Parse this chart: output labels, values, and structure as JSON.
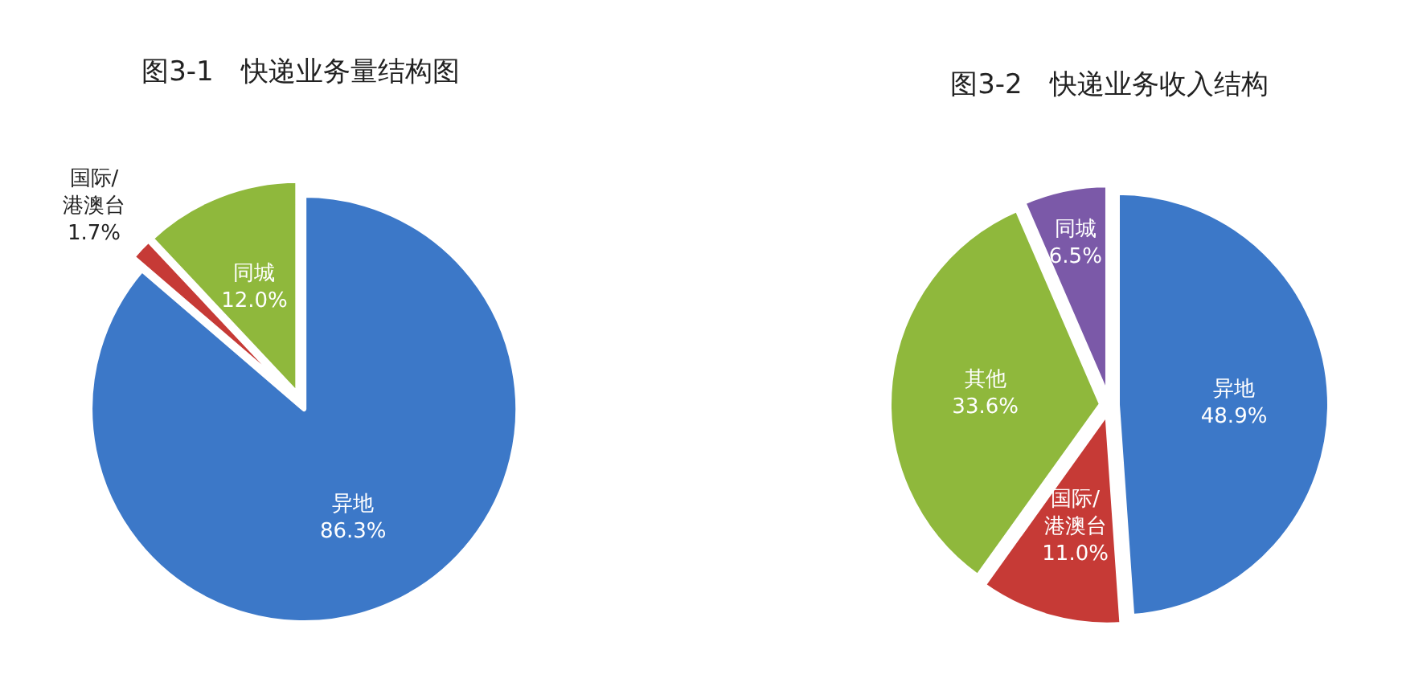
{
  "chart_data": [
    {
      "type": "pie",
      "title": "图3-1　快递业务量结构图",
      "categories": [
        "异地",
        "国际/港澳台",
        "同城"
      ],
      "values": [
        86.3,
        1.7,
        12.0
      ],
      "colors": [
        "#3c78c8",
        "#c63a36",
        "#8fb83c"
      ],
      "value_labels": [
        "86.3%",
        "1.7%",
        "12.0%"
      ]
    },
    {
      "type": "pie",
      "title": "图3-2　快递业务收入结构",
      "categories": [
        "异地",
        "国际/港澳台",
        "其他",
        "同城"
      ],
      "values": [
        48.9,
        11.0,
        33.6,
        6.5
      ],
      "colors": [
        "#3c78c8",
        "#c63a36",
        "#8fb83c",
        "#7b59a8"
      ],
      "value_labels": [
        "48.9%",
        "11.0%",
        "33.6%",
        "6.5%"
      ]
    }
  ]
}
